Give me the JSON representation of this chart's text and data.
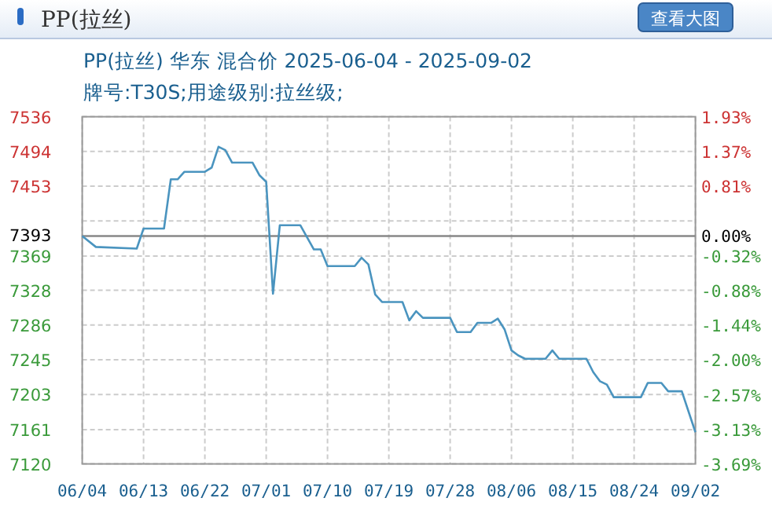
{
  "chart_data": {
    "type": "line",
    "title": "PP(拉丝) 华东 混合价 2025-06-04 - 2025-09-02",
    "subtitle": "牌号:T30S;用途级别:拉丝级;",
    "annotations": [
      "PP(拉丝)",
      "查看大图"
    ],
    "x": [
      "2025-06-04",
      "2025-06-06",
      "2025-06-12",
      "2025-06-13",
      "2025-06-16",
      "2025-06-17",
      "2025-06-18",
      "2025-06-19",
      "2025-06-22",
      "2025-06-23",
      "2025-06-24",
      "2025-06-25",
      "2025-06-26",
      "2025-06-29",
      "2025-06-30",
      "2025-07-01",
      "2025-07-02",
      "2025-07-03",
      "2025-07-06",
      "2025-07-08",
      "2025-07-09",
      "2025-07-10",
      "2025-07-14",
      "2025-07-15",
      "2025-07-16",
      "2025-07-17",
      "2025-07-18",
      "2025-07-21",
      "2025-07-22",
      "2025-07-23",
      "2025-07-24",
      "2025-07-28",
      "2025-07-29",
      "2025-07-31",
      "2025-08-01",
      "2025-08-03",
      "2025-08-04",
      "2025-08-05",
      "2025-08-06",
      "2025-08-07",
      "2025-08-08",
      "2025-08-11",
      "2025-08-12",
      "2025-08-13",
      "2025-08-17",
      "2025-08-18",
      "2025-08-19",
      "2025-08-20",
      "2025-08-21",
      "2025-08-25",
      "2025-08-26",
      "2025-08-28",
      "2025-08-29",
      "2025-08-31",
      "2025-09-02"
    ],
    "series": [
      {
        "color": "#4a94bf",
        "values": [
          7393,
          7380,
          7378,
          7402,
          7402,
          7461,
          7461,
          7470,
          7470,
          7475,
          7500,
          7496,
          7481,
          7481,
          7466,
          7458,
          7324,
          7406,
          7406,
          7377,
          7377,
          7357,
          7357,
          7367,
          7359,
          7323,
          7314,
          7314,
          7292,
          7303,
          7295,
          7295,
          7278,
          7278,
          7289,
          7289,
          7294,
          7281,
          7256,
          7250,
          7246,
          7246,
          7256,
          7246,
          7246,
          7230,
          7219,
          7215,
          7200,
          7200,
          7217,
          7217,
          7207,
          7207,
          7158
        ]
      }
    ],
    "xlim": [
      "2025-06-04",
      "2025-09-02"
    ],
    "xticks": [
      {
        "value": "2025-06-04",
        "label": "06/04"
      },
      {
        "value": "2025-06-13",
        "label": "06/13"
      },
      {
        "value": "2025-06-22",
        "label": "06/22"
      },
      {
        "value": "2025-07-01",
        "label": "07/01"
      },
      {
        "value": "2025-07-10",
        "label": "07/10"
      },
      {
        "value": "2025-07-19",
        "label": "07/19"
      },
      {
        "value": "2025-07-28",
        "label": "07/28"
      },
      {
        "value": "2025-08-06",
        "label": "08/06"
      },
      {
        "value": "2025-08-15",
        "label": "08/15"
      },
      {
        "value": "2025-08-24",
        "label": "08/24"
      },
      {
        "value": "2025-09-02",
        "label": "09/02"
      }
    ],
    "ylim": [
      7120,
      7536
    ],
    "yticks": [
      {
        "value": 7536,
        "label": "7536"
      },
      {
        "value": 7494.4,
        "label": "7494"
      },
      {
        "value": 7452.8,
        "label": "7453"
      },
      {
        "value": 7411.2,
        "label": null
      },
      {
        "value": 7369,
        "label": "7369"
      },
      {
        "value": 7328,
        "label": "7328"
      },
      {
        "value": 7286.4,
        "label": "7286"
      },
      {
        "value": 7244.8,
        "label": "7245"
      },
      {
        "value": 7203.2,
        "label": "7203"
      },
      {
        "value": 7161,
        "label": "7161"
      },
      {
        "value": 7120,
        "label": "7120"
      }
    ],
    "y2lim": [
      -3.69,
      1.93
    ],
    "y2ticks": [
      {
        "value": 1.93,
        "label": "1.93%"
      },
      {
        "value": 1.37,
        "label": "1.37%"
      },
      {
        "value": 0.81,
        "label": "0.81%"
      },
      {
        "value": 0,
        "label": "0.00%"
      },
      {
        "value": -0.32,
        "label": "-0.32%"
      },
      {
        "value": -0.88,
        "label": "-0.88%"
      },
      {
        "value": -1.44,
        "label": "-1.44%"
      },
      {
        "value": -2.0,
        "label": "-2.00%"
      },
      {
        "value": -2.57,
        "label": "-2.57%"
      },
      {
        "value": -3.13,
        "label": "-3.13%"
      },
      {
        "value": -3.69,
        "label": "-3.69%"
      }
    ],
    "ref_lines": [
      {
        "axis": "y",
        "value": 7393,
        "label": "7393",
        "color": "#888888"
      }
    ],
    "grid": true,
    "marker": "none",
    "line_style": "solid"
  }
}
